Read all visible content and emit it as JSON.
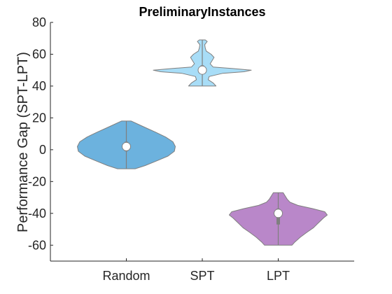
{
  "chart_data": {
    "type": "violin",
    "title": "PreliminaryInstances",
    "xlabel": "",
    "ylabel": "Performance Gap (SPT-LPT)",
    "ylim": [
      -70,
      80
    ],
    "yticks": [
      -60,
      -40,
      -20,
      0,
      20,
      40,
      60,
      80
    ],
    "categories": [
      "Random",
      "SPT",
      "LPT"
    ],
    "grid": false,
    "series": [
      {
        "category": "Random",
        "color": "#6CB2DE",
        "min": -12,
        "max": 18,
        "median": 2,
        "q1": -1,
        "q3": 5,
        "density": [
          [
            -12,
            0.18
          ],
          [
            -10,
            0.38
          ],
          [
            -7,
            0.62
          ],
          [
            -4,
            0.85
          ],
          [
            -1,
            0.98
          ],
          [
            2,
            1.0
          ],
          [
            5,
            0.95
          ],
          [
            8,
            0.8
          ],
          [
            11,
            0.6
          ],
          [
            14,
            0.38
          ],
          [
            16,
            0.24
          ],
          [
            18,
            0.1
          ]
        ]
      },
      {
        "category": "SPT",
        "color": "#A8DDF7",
        "min": 40,
        "max": 69,
        "median": 50,
        "q1": 49,
        "q3": 53,
        "density": [
          [
            40,
            0.28
          ],
          [
            42,
            0.22
          ],
          [
            44,
            0.12
          ],
          [
            46,
            0.14
          ],
          [
            48,
            0.42
          ],
          [
            49,
            0.85
          ],
          [
            50,
            1.0
          ],
          [
            51,
            0.62
          ],
          [
            52,
            0.22
          ],
          [
            54,
            0.16
          ],
          [
            56,
            0.2
          ],
          [
            58,
            0.24
          ],
          [
            60,
            0.18
          ],
          [
            62,
            0.08
          ],
          [
            64,
            0.06
          ],
          [
            66,
            0.05
          ],
          [
            68,
            0.1
          ],
          [
            69,
            0.06
          ]
        ]
      },
      {
        "category": "LPT",
        "color": "#B987C9",
        "min": -60,
        "max": -27,
        "median": -40,
        "q1": -47,
        "q3": -37,
        "density": [
          [
            -60,
            0.28
          ],
          [
            -58,
            0.34
          ],
          [
            -55,
            0.45
          ],
          [
            -52,
            0.58
          ],
          [
            -49,
            0.72
          ],
          [
            -46,
            0.82
          ],
          [
            -43,
            0.92
          ],
          [
            -41,
            1.0
          ],
          [
            -39,
            0.95
          ],
          [
            -37,
            0.7
          ],
          [
            -35,
            0.4
          ],
          [
            -33,
            0.24
          ],
          [
            -31,
            0.18
          ],
          [
            -29,
            0.14
          ],
          [
            -27,
            0.1
          ]
        ]
      }
    ]
  }
}
